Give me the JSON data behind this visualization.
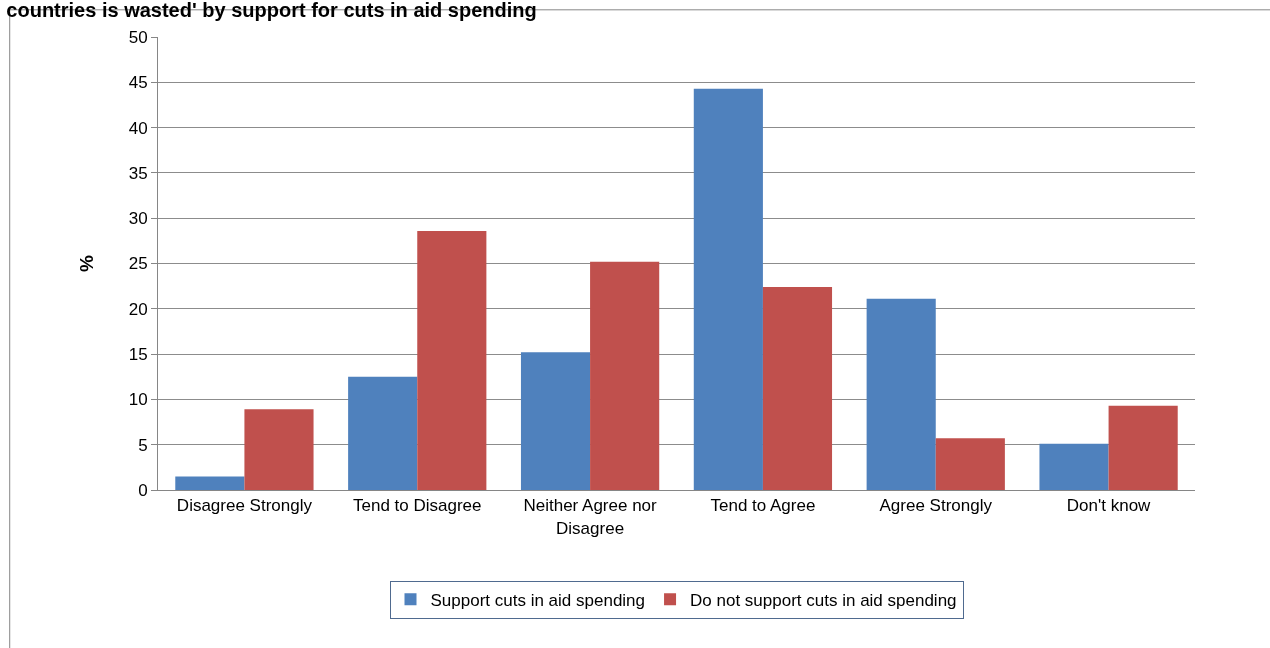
{
  "chart_data": {
    "type": "bar",
    "title": "countries is wasted' by support for cuts in aid spending",
    "ylabel": "%",
    "categories": [
      "Disagree Strongly",
      "Tend to Disagree",
      "Neither Agree nor Disagree",
      "Tend to Agree",
      "Agree Strongly",
      "Don't know"
    ],
    "series": [
      {
        "name": "Support cuts in aid spending",
        "color": "#4f81bd",
        "values": [
          1.5,
          12.5,
          15.2,
          44.3,
          21.1,
          5.1
        ]
      },
      {
        "name": "Do not support cuts in aid spending",
        "color": "#c0504d",
        "values": [
          8.9,
          28.6,
          25.2,
          22.4,
          5.7,
          9.3
        ]
      }
    ],
    "ylim": [
      0,
      50
    ],
    "yticks": [
      0,
      5,
      10,
      15,
      20,
      25,
      30,
      35,
      40,
      45,
      50
    ],
    "grid": "y",
    "legend": "bottom"
  }
}
